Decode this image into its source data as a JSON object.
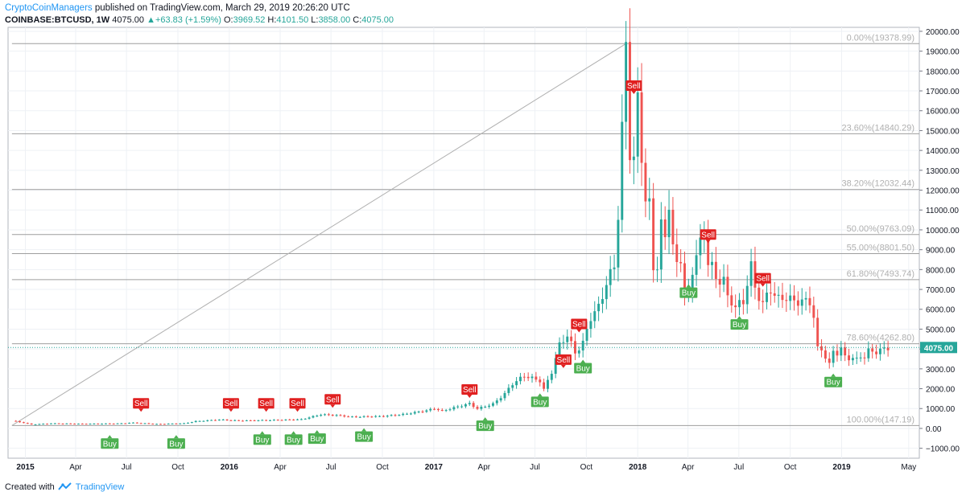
{
  "header": {
    "publisher": "CryptoCoinManagers",
    "published_text": "published on TradingView.com, March 29, 2019 20:26:20 UTC",
    "symbol": "COINBASE:BTCUSD, 1W",
    "last": "4075.00",
    "change": "▲+63.83 (+1.59%)",
    "o_label": "O:",
    "o": "3969.52",
    "h_label": "H:",
    "h": "4101.50",
    "l_label": "L:",
    "l": "3858.00",
    "c_label": "C:",
    "c": "4075.00"
  },
  "footer": {
    "created_with": "Created with",
    "brand": "TradingView"
  },
  "colors": {
    "up": "#26a69a",
    "down": "#ef5350",
    "sell": "#e02020",
    "buy": "#4caf50",
    "grid": "#eef1f5",
    "fib": "#9e9e9e",
    "price_line": "#26a69a"
  },
  "chart_data": {
    "type": "candlestick",
    "title": "",
    "ylim": [
      -1500,
      20200
    ],
    "y_ticks": [
      20000,
      19000,
      18000,
      17000,
      16000,
      15000,
      14000,
      13000,
      12000,
      11000,
      10000,
      9000,
      8000,
      7000,
      6000,
      5000,
      4000,
      3000,
      2000,
      1000,
      0,
      -1000
    ],
    "y_tick_labels": [
      "20000.00",
      "19000.00",
      "18000.00",
      "17000.00",
      "16000.00",
      "15000.00",
      "14000.00",
      "13000.00",
      "12000.00",
      "11000.00",
      "10000.00",
      "9000.00",
      "8000.00",
      "7000.00",
      "6000.00",
      "5000.00",
      "4000.00",
      "3000.00",
      "2000.00",
      "1000.00",
      "0.00",
      "−1000.00"
    ],
    "x_range": [
      "2014-12-01",
      "2019-05-20"
    ],
    "x_ticks": [
      {
        "date": "2015-01-01",
        "label": "2015",
        "bold": true
      },
      {
        "date": "2015-04-01",
        "label": "Apr",
        "bold": false
      },
      {
        "date": "2015-07-01",
        "label": "Jul",
        "bold": false
      },
      {
        "date": "2015-10-01",
        "label": "Oct",
        "bold": false
      },
      {
        "date": "2016-01-01",
        "label": "2016",
        "bold": true
      },
      {
        "date": "2016-04-01",
        "label": "Apr",
        "bold": false
      },
      {
        "date": "2016-07-01",
        "label": "Jul",
        "bold": false
      },
      {
        "date": "2016-10-01",
        "label": "Oct",
        "bold": false
      },
      {
        "date": "2017-01-01",
        "label": "2017",
        "bold": true
      },
      {
        "date": "2017-04-01",
        "label": "Apr",
        "bold": false
      },
      {
        "date": "2017-07-01",
        "label": "Jul",
        "bold": false
      },
      {
        "date": "2017-10-01",
        "label": "Oct",
        "bold": false
      },
      {
        "date": "2018-01-01",
        "label": "2018",
        "bold": true
      },
      {
        "date": "2018-04-01",
        "label": "Apr",
        "bold": false
      },
      {
        "date": "2018-07-01",
        "label": "Jul",
        "bold": false
      },
      {
        "date": "2018-10-01",
        "label": "Oct",
        "bold": false
      },
      {
        "date": "2019-01-01",
        "label": "2019",
        "bold": true
      },
      {
        "date": "2019-05-01",
        "label": "May",
        "bold": false
      }
    ],
    "price_anchors": [
      [
        "2014-12-08",
        380
      ],
      [
        "2014-12-22",
        320
      ],
      [
        "2015-01-12",
        200
      ],
      [
        "2015-02-16",
        250
      ],
      [
        "2015-04-13",
        230
      ],
      [
        "2015-06-15",
        245
      ],
      [
        "2015-07-13",
        285
      ],
      [
        "2015-08-24",
        220
      ],
      [
        "2015-10-12",
        255
      ],
      [
        "2015-11-02",
        360
      ],
      [
        "2015-12-14",
        440
      ],
      [
        "2016-01-18",
        390
      ],
      [
        "2016-03-14",
        415
      ],
      [
        "2016-05-09",
        455
      ],
      [
        "2016-06-13",
        700
      ],
      [
        "2016-07-11",
        660
      ],
      [
        "2016-08-08",
        580
      ],
      [
        "2016-10-03",
        615
      ],
      [
        "2016-11-07",
        710
      ],
      [
        "2016-12-19",
        900
      ],
      [
        "2017-01-02",
        1000
      ],
      [
        "2017-01-16",
        880
      ],
      [
        "2017-02-20",
        1150
      ],
      [
        "2017-03-06",
        1250
      ],
      [
        "2017-03-20",
        990
      ],
      [
        "2017-04-17",
        1230
      ],
      [
        "2017-05-08",
        1750
      ],
      [
        "2017-05-22",
        2250
      ],
      [
        "2017-06-12",
        2650
      ],
      [
        "2017-07-10",
        2400
      ],
      [
        "2017-07-17",
        1950
      ],
      [
        "2017-07-31",
        2850
      ],
      [
        "2017-08-14",
        4200
      ],
      [
        "2017-08-28",
        4700
      ],
      [
        "2017-09-11",
        3800
      ],
      [
        "2017-09-25",
        4300
      ],
      [
        "2017-10-09",
        5600
      ],
      [
        "2017-10-23",
        6100
      ],
      [
        "2017-11-06",
        7300
      ],
      [
        "2017-11-20",
        8200
      ],
      [
        "2017-11-27",
        10800
      ],
      [
        "2017-12-04",
        15000
      ],
      [
        "2017-12-11",
        19300
      ],
      [
        "2017-12-18",
        14000
      ],
      [
        "2017-12-25",
        13500
      ],
      [
        "2018-01-01",
        16500
      ],
      [
        "2018-01-08",
        13800
      ],
      [
        "2018-01-15",
        11500
      ],
      [
        "2018-01-22",
        11200
      ],
      [
        "2018-01-29",
        8100
      ],
      [
        "2018-02-05",
        8200
      ],
      [
        "2018-02-12",
        10200
      ],
      [
        "2018-02-19",
        9600
      ],
      [
        "2018-02-26",
        11400
      ],
      [
        "2018-03-05",
        9100
      ],
      [
        "2018-03-12",
        8200
      ],
      [
        "2018-03-19",
        8600
      ],
      [
        "2018-03-26",
        6800
      ],
      [
        "2018-04-02",
        6700
      ],
      [
        "2018-04-09",
        7900
      ],
      [
        "2018-04-16",
        8900
      ],
      [
        "2018-04-23",
        9300
      ],
      [
        "2018-04-30",
        9700
      ],
      [
        "2018-05-07",
        8500
      ],
      [
        "2018-05-14",
        8200
      ],
      [
        "2018-05-21",
        7400
      ],
      [
        "2018-05-28",
        7500
      ],
      [
        "2018-06-04",
        7600
      ],
      [
        "2018-06-11",
        6500
      ],
      [
        "2018-06-25",
        6200
      ],
      [
        "2018-07-09",
        6300
      ],
      [
        "2018-07-16",
        7400
      ],
      [
        "2018-07-23",
        8200
      ],
      [
        "2018-07-30",
        7000
      ],
      [
        "2018-08-13",
        6300
      ],
      [
        "2018-08-27",
        7000
      ],
      [
        "2018-09-10",
        6500
      ],
      [
        "2018-09-24",
        6600
      ],
      [
        "2018-10-08",
        6400
      ],
      [
        "2018-10-22",
        6400
      ],
      [
        "2018-11-05",
        6400
      ],
      [
        "2018-11-12",
        5600
      ],
      [
        "2018-11-19",
        4000
      ],
      [
        "2018-11-26",
        4000
      ],
      [
        "2018-12-03",
        3600
      ],
      [
        "2018-12-10",
        3200
      ],
      [
        "2018-12-17",
        3900
      ],
      [
        "2018-12-24",
        3800
      ],
      [
        "2018-12-31",
        4000
      ],
      [
        "2019-01-07",
        3600
      ],
      [
        "2019-01-14",
        3550
      ],
      [
        "2019-01-21",
        3550
      ],
      [
        "2019-01-28",
        3450
      ],
      [
        "2019-02-04",
        3650
      ],
      [
        "2019-02-11",
        3600
      ],
      [
        "2019-02-18",
        3900
      ],
      [
        "2019-03-04",
        3860
      ],
      [
        "2019-03-18",
        4000
      ],
      [
        "2019-03-25",
        4075
      ]
    ],
    "last_price": 4075.0,
    "last_price_label": "4075.00",
    "fib_levels": [
      {
        "label": "0.00%(19378.99)",
        "value": 19378.99
      },
      {
        "label": "23.60%(14840.29)",
        "value": 14840.29
      },
      {
        "label": "38.20%(12032.44)",
        "value": 12032.44
      },
      {
        "label": "50.00%(9763.09)",
        "value": 9763.09
      },
      {
        "label": "55.00%(8801.50)",
        "value": 8801.5
      },
      {
        "label": "61.80%(7493.74)",
        "value": 7493.74
      },
      {
        "label": "78.60%(4262.80)",
        "value": 4262.8
      },
      {
        "label": "100.00%(147.19)",
        "value": 147.19
      }
    ],
    "trend_line": [
      [
        "2014-12-08",
        147.19
      ],
      [
        "2017-12-11",
        19378.99
      ]
    ],
    "signals": [
      {
        "type": "Sell",
        "date": "2015-07-27",
        "price": 1000
      },
      {
        "type": "Sell",
        "date": "2016-01-04",
        "price": 1000
      },
      {
        "type": "Sell",
        "date": "2016-03-07",
        "price": 1000
      },
      {
        "type": "Sell",
        "date": "2016-05-02",
        "price": 1000
      },
      {
        "type": "Sell",
        "date": "2016-07-04",
        "price": 1200
      },
      {
        "type": "Sell",
        "date": "2017-03-06",
        "price": 1700
      },
      {
        "type": "Sell",
        "date": "2017-08-21",
        "price": 3200
      },
      {
        "type": "Sell",
        "date": "2017-09-18",
        "price": 5000
      },
      {
        "type": "Sell",
        "date": "2017-12-25",
        "price": 17000
      },
      {
        "type": "Sell",
        "date": "2018-05-07",
        "price": 9500
      },
      {
        "type": "Sell",
        "date": "2018-08-13",
        "price": 7300
      },
      {
        "type": "Buy",
        "date": "2015-06-01",
        "price": -500
      },
      {
        "type": "Buy",
        "date": "2015-09-28",
        "price": -500
      },
      {
        "type": "Buy",
        "date": "2016-02-29",
        "price": -300
      },
      {
        "type": "Buy",
        "date": "2016-04-25",
        "price": -300
      },
      {
        "type": "Buy",
        "date": "2016-06-06",
        "price": -250
      },
      {
        "type": "Buy",
        "date": "2016-08-29",
        "price": -150
      },
      {
        "type": "Buy",
        "date": "2017-04-03",
        "price": 400
      },
      {
        "type": "Buy",
        "date": "2017-07-10",
        "price": 1600
      },
      {
        "type": "Buy",
        "date": "2017-09-25",
        "price": 3300
      },
      {
        "type": "Buy",
        "date": "2018-04-02",
        "price": 7100
      },
      {
        "type": "Buy",
        "date": "2018-07-02",
        "price": 5500
      },
      {
        "type": "Buy",
        "date": "2018-12-17",
        "price": 2600
      }
    ]
  }
}
